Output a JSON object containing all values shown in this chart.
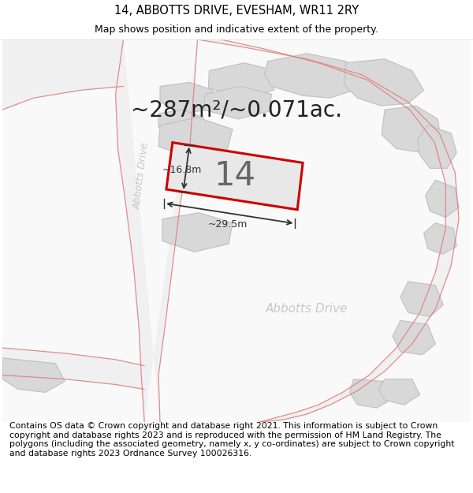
{
  "title": "14, ABBOTTS DRIVE, EVESHAM, WR11 2RY",
  "subtitle": "Map shows position and indicative extent of the property.",
  "area_text": "~287m²/~0.071ac.",
  "width_label": "~29.5m",
  "height_label": "~16.8m",
  "number_label": "14",
  "road_label_diag": "Abbotts Drive",
  "road_label_horiz": "Abbotts Drive",
  "footer": "Contains OS data © Crown copyright and database right 2021. This information is subject to Crown copyright and database rights 2023 and is reproduced with the permission of HM Land Registry. The polygons (including the associated geometry, namely x, y co-ordinates) are subject to Crown copyright and database rights 2023 Ordnance Survey 100026316.",
  "bg_color": "#ffffff",
  "map_bg": "#f8f8f8",
  "building_fill": "#d8d8d8",
  "building_edge": "#c0c0c0",
  "plot_fill": "#e8e8e8",
  "plot_edge": "#cc0000",
  "road_line_color": "#e08080",
  "dim_color": "#333333",
  "road_text_color": "#c0c0c0",
  "title_fontsize": 10.5,
  "subtitle_fontsize": 9,
  "area_fontsize": 20,
  "label_fontsize": 9,
  "footer_fontsize": 7.8,
  "number_fontsize": 30
}
